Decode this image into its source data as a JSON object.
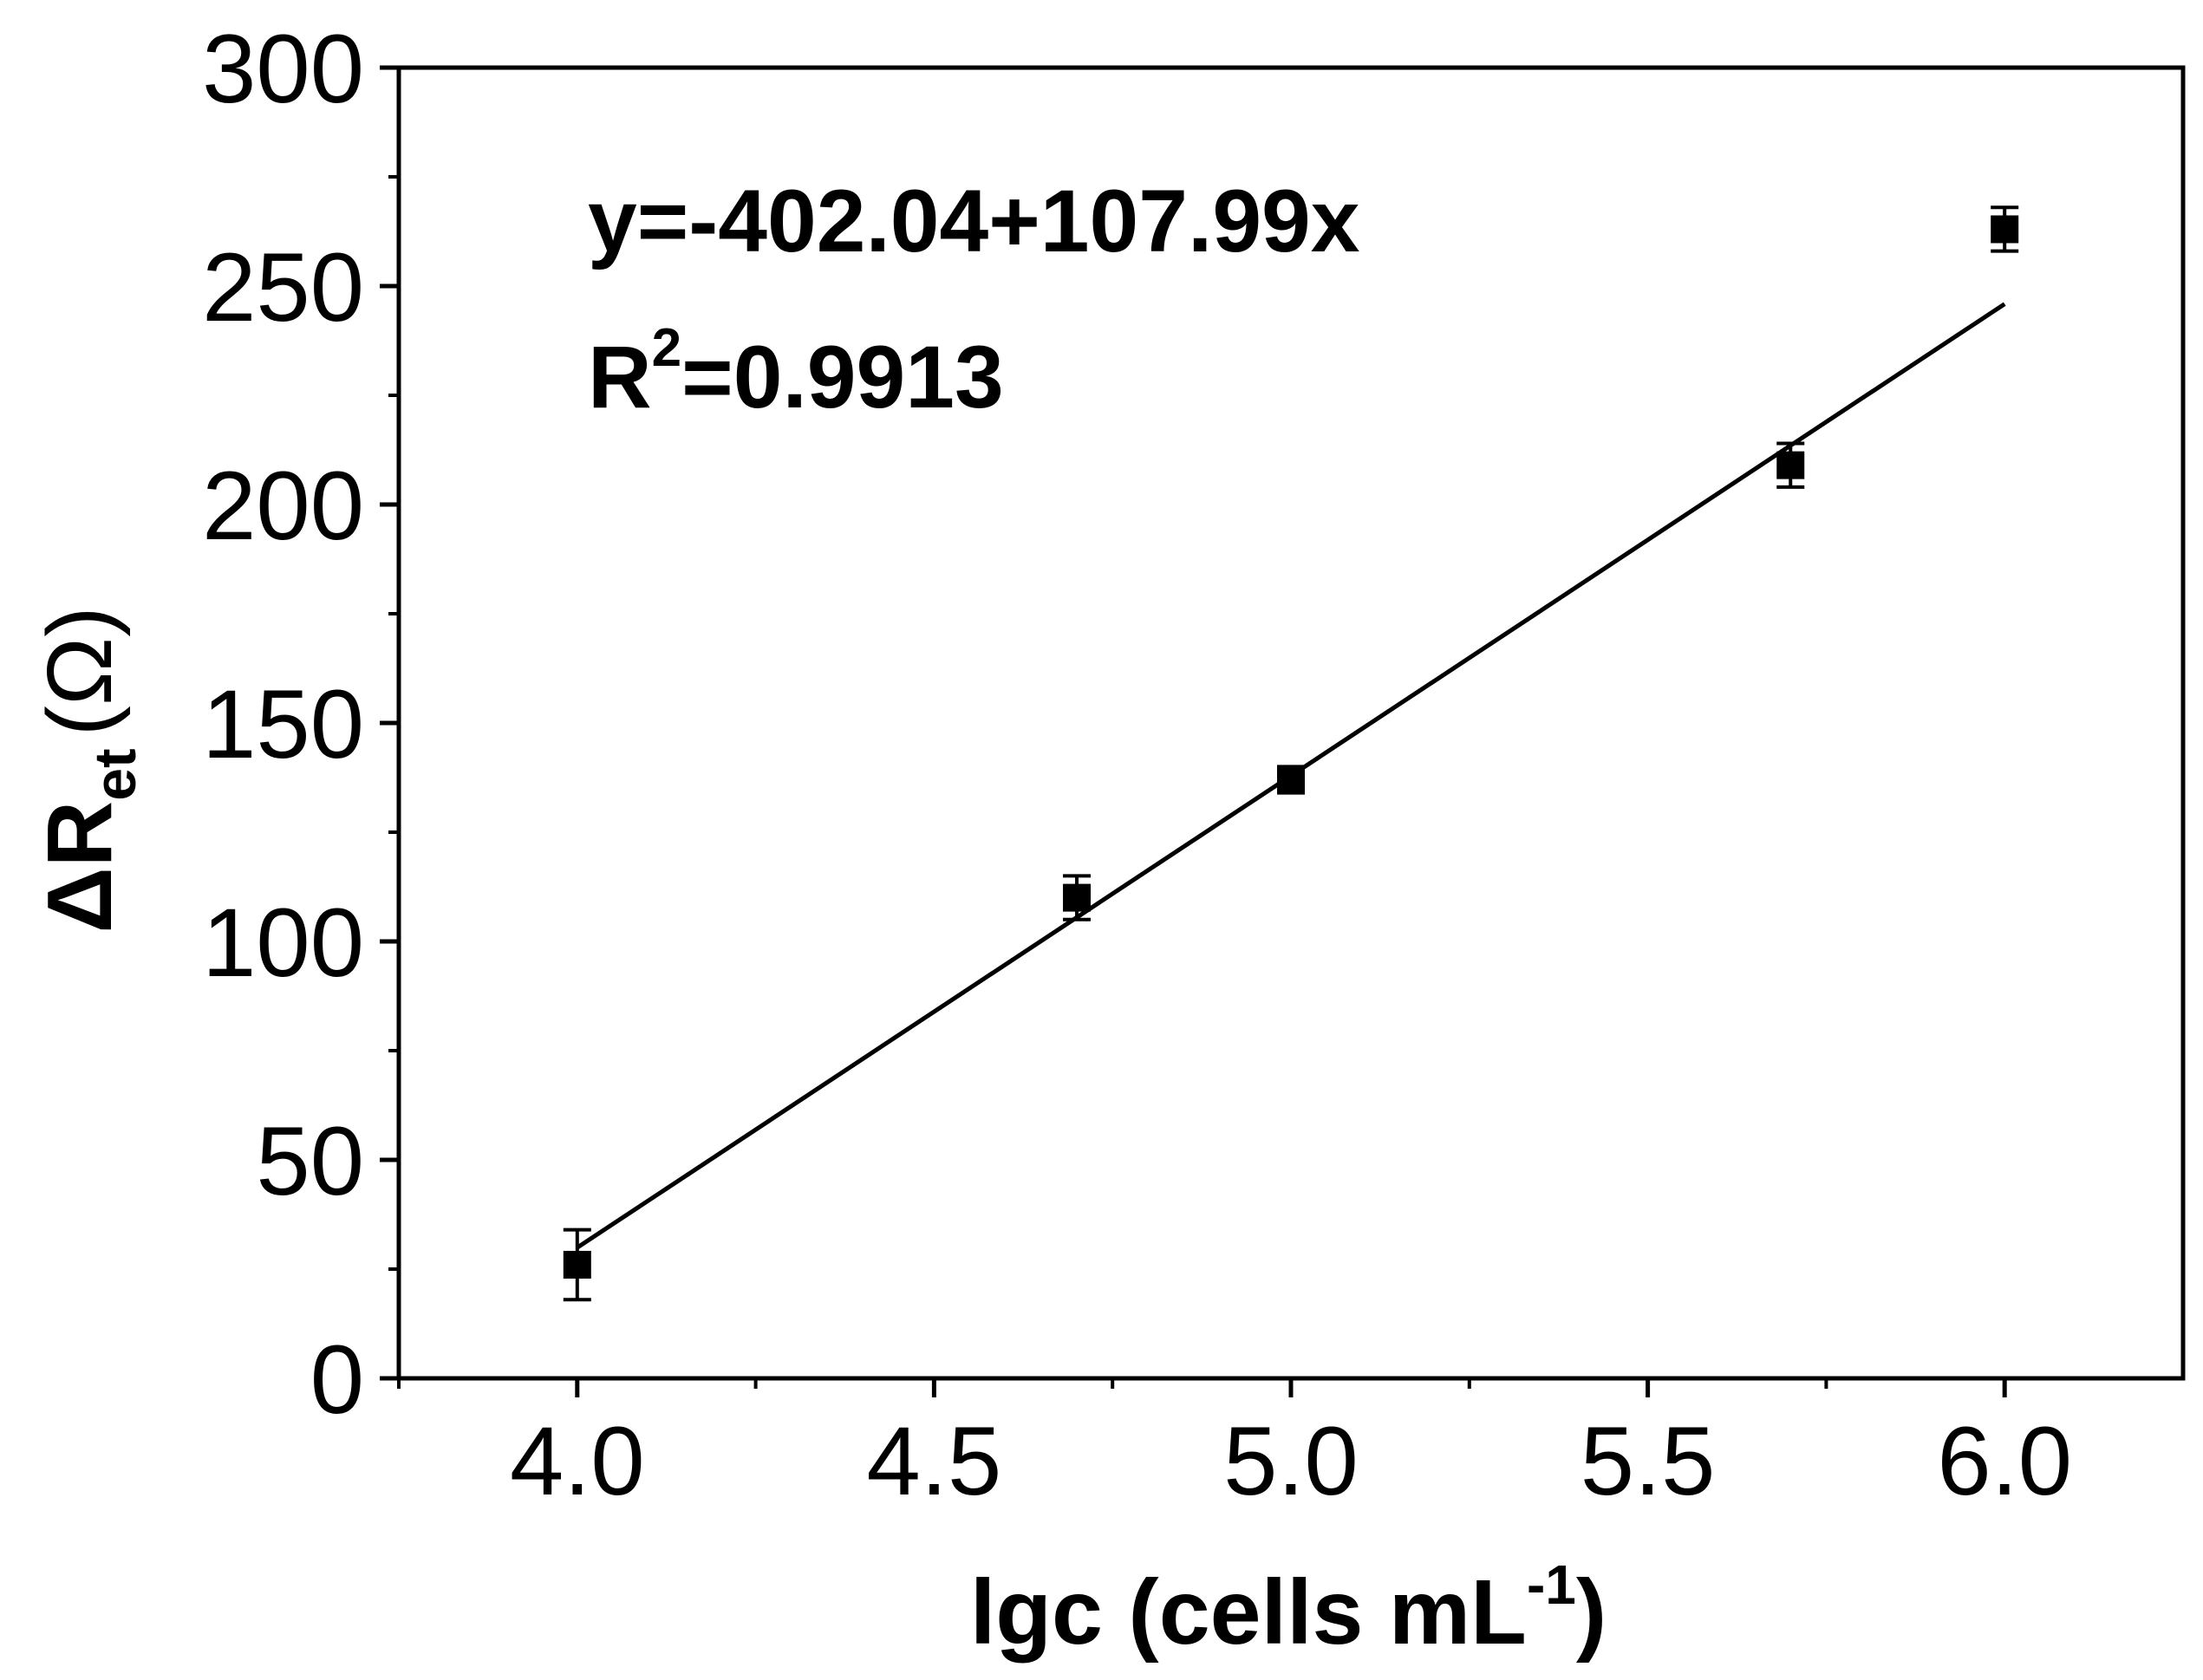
{
  "chart_data": {
    "type": "scatter",
    "x": [
      4.0,
      4.7,
      5.0,
      5.7,
      6.0
    ],
    "series": [
      {
        "values": [
          26,
          110,
          137,
          209,
          263
        ],
        "errors": [
          8,
          5,
          3,
          5,
          5
        ],
        "marker": "square",
        "color": "#000000"
      }
    ],
    "fit": {
      "intercept": -402.04,
      "slope": 107.99,
      "x_range": [
        4.0,
        6.0
      ]
    },
    "annotations": {
      "equation": "y=-402.04+107.99x",
      "r2_prefix": "R",
      "r2_exp": "2",
      "r2_value": "=0.9913"
    },
    "xlim": [
      3.75,
      6.25
    ],
    "ylim": [
      0,
      300
    ],
    "xticks": [
      "4.0",
      "4.5",
      "5.0",
      "5.5",
      "6.0"
    ],
    "yticks": [
      "0",
      "50",
      "100",
      "150",
      "200",
      "250",
      "300"
    ],
    "xlabel": {
      "main": "lgc (cells mL",
      "sup": "-1",
      "close": ")"
    },
    "ylabel": {
      "main": "ΔR",
      "sub": "et",
      "rest": "(Ω)"
    },
    "grid": false
  }
}
